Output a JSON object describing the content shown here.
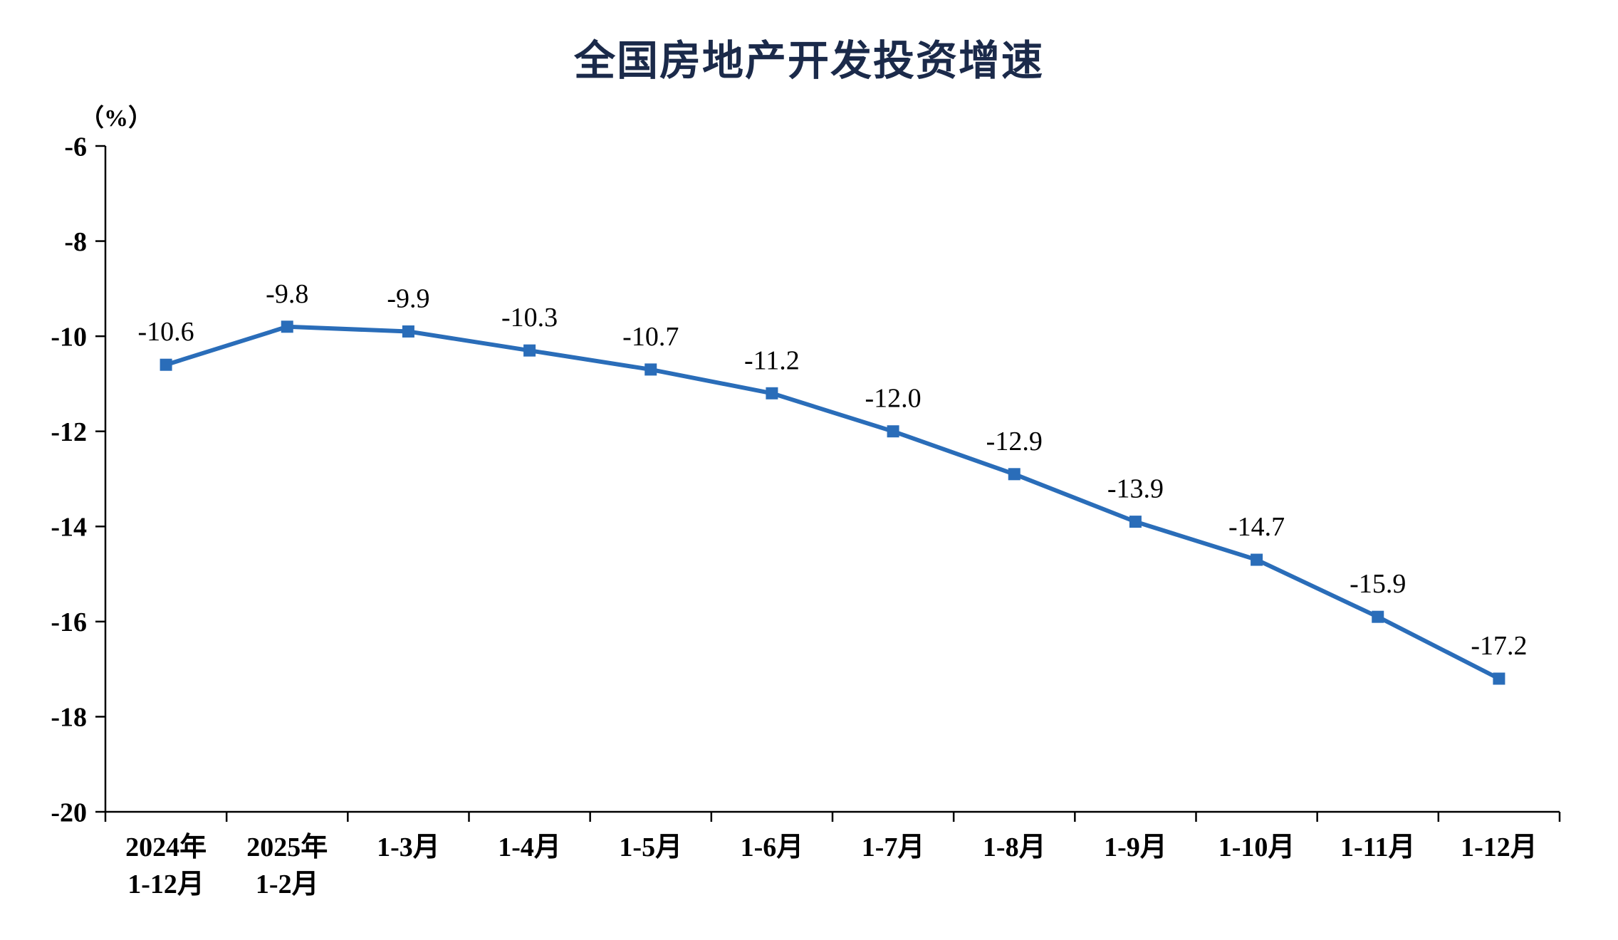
{
  "chart_data": {
    "type": "line",
    "title": "全国房地产开发投资增速",
    "unit_label": "（%）",
    "series_name": "全国房地产开发投资增速",
    "categories": [
      [
        "2024年",
        "1-12月"
      ],
      [
        "2025年",
        "1-2月"
      ],
      [
        "1-3月"
      ],
      [
        "1-4月"
      ],
      [
        "1-5月"
      ],
      [
        "1-6月"
      ],
      [
        "1-7月"
      ],
      [
        "1-8月"
      ],
      [
        "1-9月"
      ],
      [
        "1-10月"
      ],
      [
        "1-11月"
      ],
      [
        "1-12月"
      ]
    ],
    "values": [
      -10.6,
      -9.8,
      -9.9,
      -10.3,
      -10.7,
      -11.2,
      -12.0,
      -12.9,
      -13.9,
      -14.7,
      -15.9,
      -17.2
    ],
    "data_labels": [
      "-10.6",
      "-9.8",
      "-9.9",
      "-10.3",
      "-10.7",
      "-11.2",
      "-12.0",
      "-12.9",
      "-13.9",
      "-14.7",
      "-15.9",
      "-17.2"
    ],
    "ylim": [
      -20,
      -6
    ],
    "y_ticks": [
      -6,
      -8,
      -10,
      -12,
      -14,
      -16,
      -18,
      -20
    ],
    "y_tick_labels": [
      "-6",
      "-8",
      "-10",
      "-12",
      "-14",
      "-16",
      "-18",
      "-20"
    ],
    "grid": false,
    "legend": "none",
    "marker": "square",
    "line_color": "#2a6db9",
    "marker_color": "#2a6db9",
    "axis_color": "#000000",
    "text_color": "#000000",
    "title_color": "#1b2a4a"
  }
}
